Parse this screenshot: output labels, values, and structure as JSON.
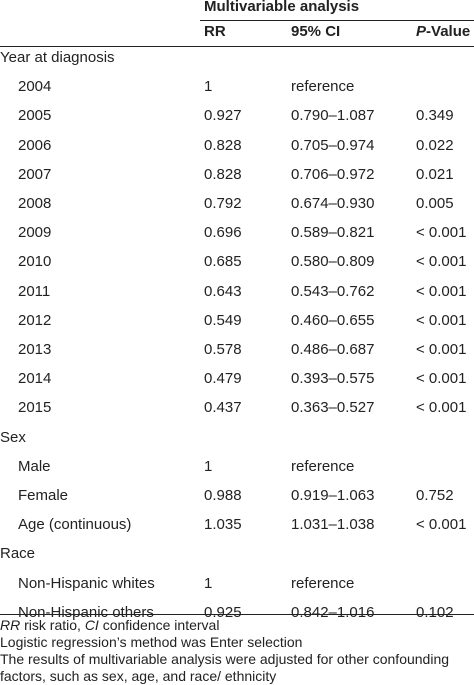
{
  "header": {
    "group_title": "Multivariable analysis",
    "col_rr": "RR",
    "col_ci": "95% CI",
    "col_p_italic": "P",
    "col_p_rest": "-Value"
  },
  "sections": [
    {
      "label": "Year at diagnosis",
      "rows": [
        {
          "name": "2004",
          "rr": "1",
          "ci": "reference",
          "p": ""
        },
        {
          "name": "2005",
          "rr": "0.927",
          "ci": "0.790–1.087",
          "p": "0.349"
        },
        {
          "name": "2006",
          "rr": "0.828",
          "ci": "0.705–0.974",
          "p": "0.022"
        },
        {
          "name": "2007",
          "rr": "0.828",
          "ci": "0.706–0.972",
          "p": "0.021"
        },
        {
          "name": "2008",
          "rr": "0.792",
          "ci": "0.674–0.930",
          "p": "0.005"
        },
        {
          "name": "2009",
          "rr": "0.696",
          "ci": "0.589–0.821",
          "p": "< 0.001"
        },
        {
          "name": "2010",
          "rr": "0.685",
          "ci": "0.580–0.809",
          "p": "< 0.001"
        },
        {
          "name": "2011",
          "rr": "0.643",
          "ci": "0.543–0.762",
          "p": "< 0.001"
        },
        {
          "name": "2012",
          "rr": "0.549",
          "ci": "0.460–0.655",
          "p": "< 0.001"
        },
        {
          "name": "2013",
          "rr": "0.578",
          "ci": "0.486–0.687",
          "p": "< 0.001"
        },
        {
          "name": "2014",
          "rr": "0.479",
          "ci": "0.393–0.575",
          "p": "< 0.001"
        },
        {
          "name": "2015",
          "rr": "0.437",
          "ci": "0.363–0.527",
          "p": "< 0.001"
        }
      ]
    },
    {
      "label": "Sex",
      "rows": [
        {
          "name": "Male",
          "rr": "1",
          "ci": "reference",
          "p": ""
        },
        {
          "name": "Female",
          "rr": "0.988",
          "ci": "0.919–1.063",
          "p": "0.752"
        },
        {
          "name": "Age (continuous)",
          "rr": "1.035",
          "ci": "1.031–1.038",
          "p": "< 0.001"
        }
      ]
    },
    {
      "label": "Race",
      "rows": [
        {
          "name": "Non-Hispanic whites",
          "rr": "1",
          "ci": "reference",
          "p": ""
        },
        {
          "name": "Non-Hispanic others",
          "rr": "0.925",
          "ci": "0.842–1.016",
          "p": "0.102"
        }
      ]
    }
  ],
  "footnotes": {
    "line1_rr": "RR",
    "line1_a": " risk ratio, ",
    "line1_ci": "CI",
    "line1_b": " confidence interval",
    "line2": "Logistic regression’s method was Enter selection",
    "line3": "The results of multivariable analysis were adjusted for other confounding factors, such as sex, age, and race/ ethnicity"
  }
}
